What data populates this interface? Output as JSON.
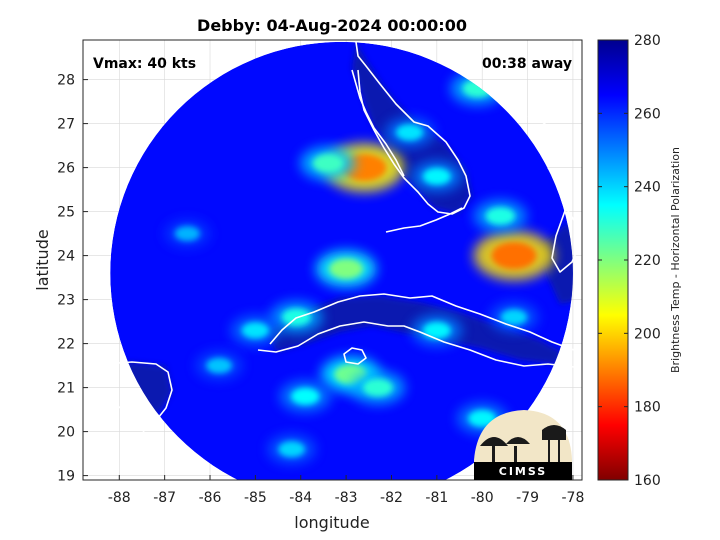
{
  "chart_data": {
    "type": "heatmap",
    "title": "Debby: 04-Aug-2024 00:00:00",
    "xlabel": "longitude",
    "ylabel": "latitude",
    "xlim": [
      -88.8,
      -77.8
    ],
    "ylim": [
      18.9,
      28.9
    ],
    "xticks": [
      -88,
      -87,
      -86,
      -85,
      -84,
      -83,
      -82,
      -81,
      -80,
      -79,
      -78
    ],
    "yticks": [
      19,
      20,
      21,
      22,
      23,
      24,
      25,
      26,
      27,
      28
    ],
    "grid": true,
    "colorbar": {
      "label": "Brightness Temp - Horizontal Polarization",
      "min": 160,
      "max": 280,
      "ticks": [
        160,
        180,
        200,
        220,
        240,
        260,
        280
      ],
      "colormap": "jet"
    },
    "swath": {
      "center": {
        "lon": -83.1,
        "lat": 23.6
      },
      "radius_deg": 5.1,
      "background_value": 264
    },
    "annotations": {
      "vmax": "Vmax: 40 kts",
      "time_offset": "00:38 away"
    },
    "logo_text": "CIMSS",
    "features": [
      {
        "name": "convection-west-of-naples",
        "lon": -82.6,
        "lat": 26.0,
        "value": 190
      },
      {
        "name": "convection-tampa-bay-region",
        "lon": -83.4,
        "lat": 26.1,
        "value": 228
      },
      {
        "name": "band-west-florida-coast",
        "lon": -81.6,
        "lat": 26.8,
        "value": 238
      },
      {
        "name": "convection-east-of-bahamas",
        "lon": -79.3,
        "lat": 24.0,
        "value": 188
      },
      {
        "name": "cell-north-bahamas",
        "lon": -80.1,
        "lat": 27.8,
        "value": 230
      },
      {
        "name": "cell-florida-keys-north",
        "lon": -81.0,
        "lat": 25.8,
        "value": 236
      },
      {
        "name": "cell-gulf-stream",
        "lon": -79.6,
        "lat": 24.9,
        "value": 232
      },
      {
        "name": "convection-florida-straits",
        "lon": -83.0,
        "lat": 23.7,
        "value": 220
      },
      {
        "name": "band-west-cuba",
        "lon": -84.1,
        "lat": 22.6,
        "value": 232
      },
      {
        "name": "convection-isla-juventud",
        "lon": -82.9,
        "lat": 21.3,
        "value": 222
      },
      {
        "name": "band-south-of-cuba",
        "lon": -82.3,
        "lat": 21.0,
        "value": 230
      },
      {
        "name": "cell-yucatan-channel",
        "lon": -85.0,
        "lat": 22.3,
        "value": 238
      },
      {
        "name": "cell-south-swath",
        "lon": -83.9,
        "lat": 20.8,
        "value": 235
      },
      {
        "name": "cell-southwest-swath",
        "lon": -85.8,
        "lat": 21.5,
        "value": 242
      },
      {
        "name": "cell-central-cuba",
        "lon": -81.0,
        "lat": 22.3,
        "value": 236
      },
      {
        "name": "cell-southeast-swath",
        "lon": -80.0,
        "lat": 20.3,
        "value": 236
      },
      {
        "name": "cell-east-edge",
        "lon": -79.3,
        "lat": 22.6,
        "value": 240
      },
      {
        "name": "cell-gulf-west",
        "lon": -86.5,
        "lat": 24.5,
        "value": 244
      },
      {
        "name": "cell-south-edge",
        "lon": -84.2,
        "lat": 19.6,
        "value": 240
      }
    ],
    "land_regions": [
      {
        "name": "florida-peninsula",
        "value": 272
      },
      {
        "name": "cuba",
        "value": 274
      },
      {
        "name": "yucatan",
        "value": 272
      },
      {
        "name": "andros-bahamas",
        "value": 270
      }
    ]
  }
}
